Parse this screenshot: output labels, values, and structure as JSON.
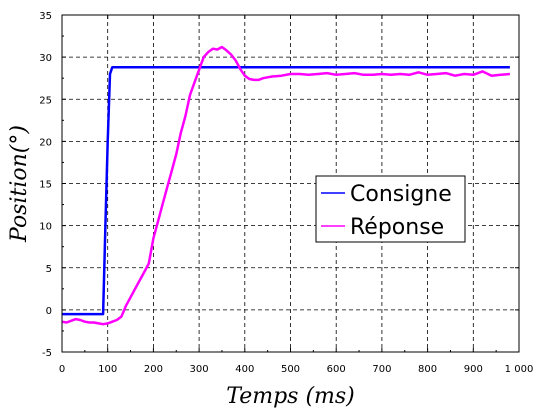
{
  "chart_data": {
    "type": "line",
    "xlabel": "Temps (ms)",
    "ylabel": "Position(°)",
    "xlim": [
      0,
      1000
    ],
    "ylim": [
      -5,
      35
    ],
    "x_ticks": [
      0,
      100,
      200,
      300,
      400,
      500,
      600,
      700,
      800,
      900,
      1000
    ],
    "x_tick_labels": [
      "0",
      "100",
      "200",
      "300",
      "400",
      "500",
      "600",
      "700",
      "800",
      "900",
      "1 000"
    ],
    "y_ticks": [
      -5,
      0,
      5,
      10,
      15,
      20,
      25,
      30,
      35
    ],
    "y_tick_labels": [
      "-5",
      "0",
      "5",
      "10",
      "15",
      "20",
      "25",
      "30",
      "35"
    ],
    "grid": true,
    "legend_position": "right",
    "series": [
      {
        "name": "Consigne",
        "color": "#0000ff",
        "x": [
          0,
          90,
          95,
          100,
          105,
          110,
          980
        ],
        "y": [
          -0.5,
          -0.5,
          10,
          20,
          28,
          28.8,
          28.8
        ]
      },
      {
        "name": "Réponse",
        "color": "#ff00ff",
        "x": [
          0,
          10,
          20,
          30,
          40,
          50,
          60,
          70,
          80,
          90,
          100,
          110,
          120,
          130,
          140,
          150,
          160,
          170,
          180,
          190,
          200,
          210,
          220,
          230,
          240,
          250,
          260,
          270,
          280,
          290,
          300,
          310,
          320,
          330,
          340,
          350,
          360,
          370,
          380,
          390,
          400,
          410,
          420,
          430,
          440,
          450,
          460,
          480,
          500,
          520,
          540,
          560,
          580,
          600,
          620,
          640,
          660,
          680,
          700,
          720,
          740,
          760,
          780,
          800,
          820,
          840,
          860,
          880,
          900,
          920,
          940,
          960,
          980
        ],
        "y": [
          -1.4,
          -1.5,
          -1.3,
          -1.1,
          -1.2,
          -1.4,
          -1.5,
          -1.5,
          -1.6,
          -1.7,
          -1.6,
          -1.4,
          -1.2,
          -0.8,
          0.5,
          1.5,
          2.5,
          3.5,
          4.5,
          5.5,
          8.5,
          10.5,
          12.5,
          14.5,
          16.5,
          18.5,
          21,
          23,
          25.5,
          27,
          28.5,
          30,
          30.6,
          31,
          30.9,
          31.2,
          30.8,
          30.3,
          29.6,
          28.6,
          27.8,
          27.4,
          27.3,
          27.3,
          27.5,
          27.6,
          27.7,
          27.8,
          28,
          28,
          27.9,
          28,
          28.1,
          27.9,
          28,
          28.1,
          27.9,
          27.9,
          28,
          27.9,
          28,
          27.9,
          28.2,
          27.9,
          28,
          28.1,
          27.8,
          28,
          27.9,
          28.3,
          27.8,
          27.9,
          28
        ]
      }
    ]
  }
}
